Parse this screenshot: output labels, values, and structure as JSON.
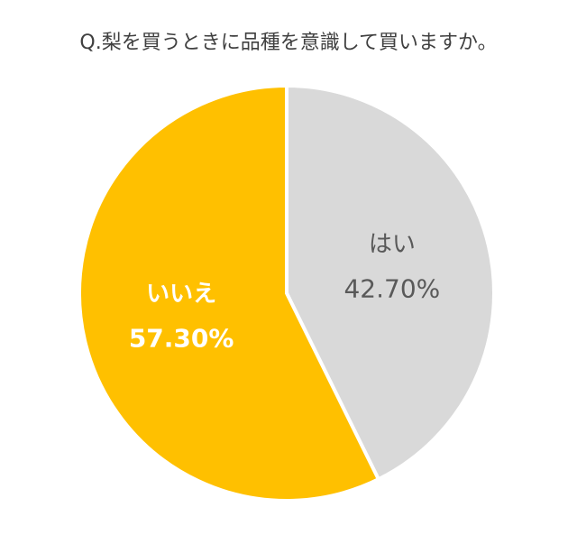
{
  "chart_data": {
    "type": "pie",
    "title": "Q.梨を買うときに品種を意識して買いますか。",
    "categories": [
      "はい",
      "いいえ"
    ],
    "values": [
      42.7,
      57.3
    ],
    "value_labels": [
      "42.70%",
      "57.30%"
    ],
    "colors": [
      "#d9d9d9",
      "#ffc000"
    ],
    "label_colors": [
      "#595959",
      "#ffffff"
    ]
  }
}
